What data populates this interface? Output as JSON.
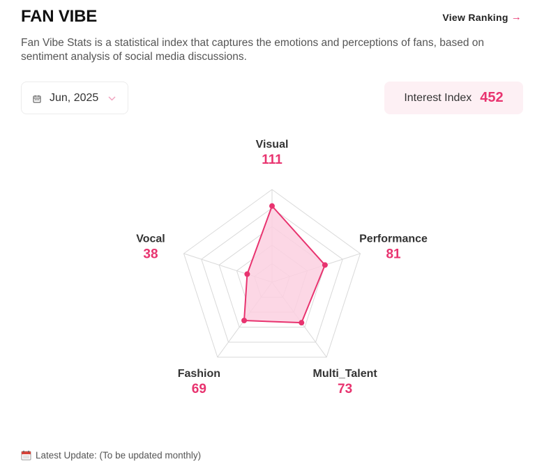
{
  "header": {
    "title": "FAN VIBE",
    "view_ranking": "View Ranking",
    "description": "Fan Vibe Stats is a statistical index that captures the emotions and perceptions of fans, based on sentiment analysis of social media discussions."
  },
  "controls": {
    "date": "Jun, 2025",
    "interest_label": "Interest Index",
    "interest_value": "452"
  },
  "footer": {
    "update_text": "Latest Update: (To be updated monthly)"
  },
  "colors": {
    "accent": "#e8336f",
    "fill": "#fbd0e1",
    "grid": "#d9d9d9"
  },
  "chart_data": {
    "type": "radar",
    "title": "",
    "categories": [
      "Visual",
      "Performance",
      "Multi_Talent",
      "Fashion",
      "Vocal"
    ],
    "values": [
      111,
      81,
      73,
      69,
      38
    ],
    "value_labels": [
      "111",
      "81",
      "73",
      "69",
      "38"
    ],
    "range": [
      0,
      135
    ],
    "grid_levels": 5,
    "grid": true
  }
}
